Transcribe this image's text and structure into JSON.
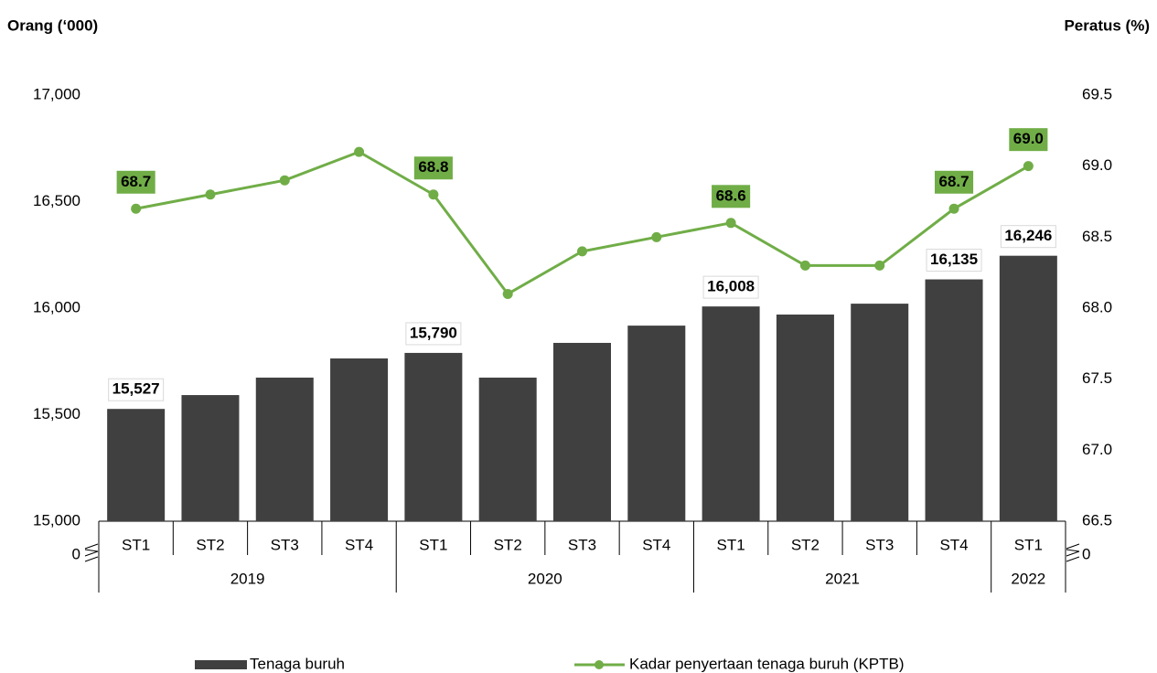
{
  "chart_data": {
    "type": "bar-line",
    "y_axis_label": "Orang (‘000)",
    "y2_axis_label": "Peratus (%)",
    "categories": [
      "ST1",
      "ST2",
      "ST3",
      "ST4",
      "ST1",
      "ST2",
      "ST3",
      "ST4",
      "ST1",
      "ST2",
      "ST3",
      "ST4",
      "ST1"
    ],
    "groups": [
      {
        "label": "2019",
        "span": 4
      },
      {
        "label": "2020",
        "span": 4
      },
      {
        "label": "2021",
        "span": 4
      },
      {
        "label": "2022",
        "span": 1
      }
    ],
    "series": [
      {
        "name": "Tenaga buruh",
        "type": "bar",
        "color": "#404040",
        "values": [
          15527,
          15592,
          15674,
          15764,
          15790,
          15674,
          15837,
          15918,
          16008,
          15970,
          16021,
          16135,
          16246
        ],
        "value_labels": [
          "15,527",
          null,
          null,
          null,
          "15,790",
          null,
          null,
          null,
          "16,008",
          null,
          null,
          "16,135",
          "16,246"
        ]
      },
      {
        "name": "Kadar penyertaan tenaga buruh (KPTB)",
        "type": "line",
        "axis": "y2",
        "color": "#70ad47",
        "values": [
          68.7,
          68.8,
          68.9,
          69.1,
          68.8,
          68.1,
          68.4,
          68.5,
          68.6,
          68.3,
          68.3,
          68.7,
          69.0
        ],
        "value_labels": [
          "68.7",
          null,
          null,
          null,
          "68.8",
          null,
          null,
          null,
          "68.6",
          null,
          null,
          "68.7",
          "69.0"
        ]
      }
    ],
    "ylim": [
      15000,
      17000
    ],
    "yticks": [
      {
        "value": 15000,
        "label": "15,000"
      },
      {
        "value": 15500,
        "label": "15,500"
      },
      {
        "value": 16000,
        "label": "16,000"
      },
      {
        "value": 16500,
        "label": "16,500"
      },
      {
        "value": 17000,
        "label": "17,000"
      }
    ],
    "y2lim": [
      66.5,
      69.5
    ],
    "y2ticks": [
      66.5,
      {
        "value": 67.0,
        "label": "67.0"
      },
      67.5,
      {
        "value": 68.0,
        "label": "68.0"
      },
      68.5,
      {
        "value": 69.0,
        "label": "69.0"
      },
      69.5
    ],
    "axis_break": {
      "y": 0,
      "y2": 0
    },
    "legend": "bottom"
  }
}
